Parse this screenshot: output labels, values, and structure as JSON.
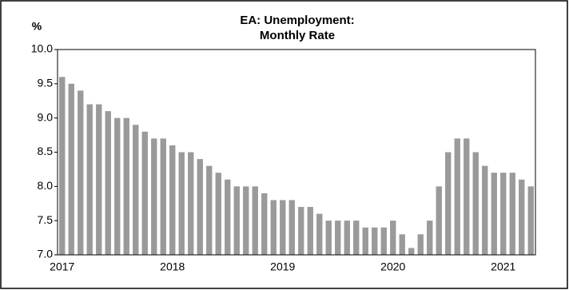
{
  "chart_data": {
    "type": "bar",
    "title": [
      "EA: Unemployment:",
      "Monthly Rate"
    ],
    "y_label": "%",
    "categories": [
      "2017",
      null,
      null,
      null,
      null,
      null,
      null,
      null,
      null,
      null,
      null,
      null,
      "2018",
      null,
      null,
      null,
      null,
      null,
      null,
      null,
      null,
      null,
      null,
      null,
      "2019",
      null,
      null,
      null,
      null,
      null,
      null,
      null,
      null,
      null,
      null,
      null,
      "2020",
      null,
      null,
      null,
      null,
      null,
      null,
      null,
      null,
      null,
      null,
      null,
      "2021",
      null,
      null,
      null
    ],
    "values": [
      9.6,
      9.5,
      9.4,
      9.2,
      9.2,
      9.1,
      9.0,
      9.0,
      8.9,
      8.8,
      8.7,
      8.7,
      8.6,
      8.5,
      8.5,
      8.4,
      8.3,
      8.2,
      8.1,
      8.0,
      8.0,
      8.0,
      7.9,
      7.8,
      7.8,
      7.8,
      7.7,
      7.7,
      7.6,
      7.5,
      7.5,
      7.5,
      7.5,
      7.4,
      7.4,
      7.4,
      7.5,
      7.3,
      7.1,
      7.3,
      7.5,
      8.0,
      8.5,
      8.7,
      8.7,
      8.5,
      8.3,
      8.2,
      8.2,
      8.2,
      8.1,
      8.0
    ],
    "color": "#9a9a9a",
    "ylim": [
      7.0,
      10.0
    ],
    "yticks": [
      {
        "value": 7.0,
        "label": "7.0"
      },
      7.5,
      {
        "value": 8.0,
        "label": "8.0"
      },
      8.5,
      {
        "value": 9.0,
        "label": "9.0"
      },
      9.5,
      {
        "value": 10.0,
        "label": "10.0"
      }
    ],
    "grid": false
  }
}
